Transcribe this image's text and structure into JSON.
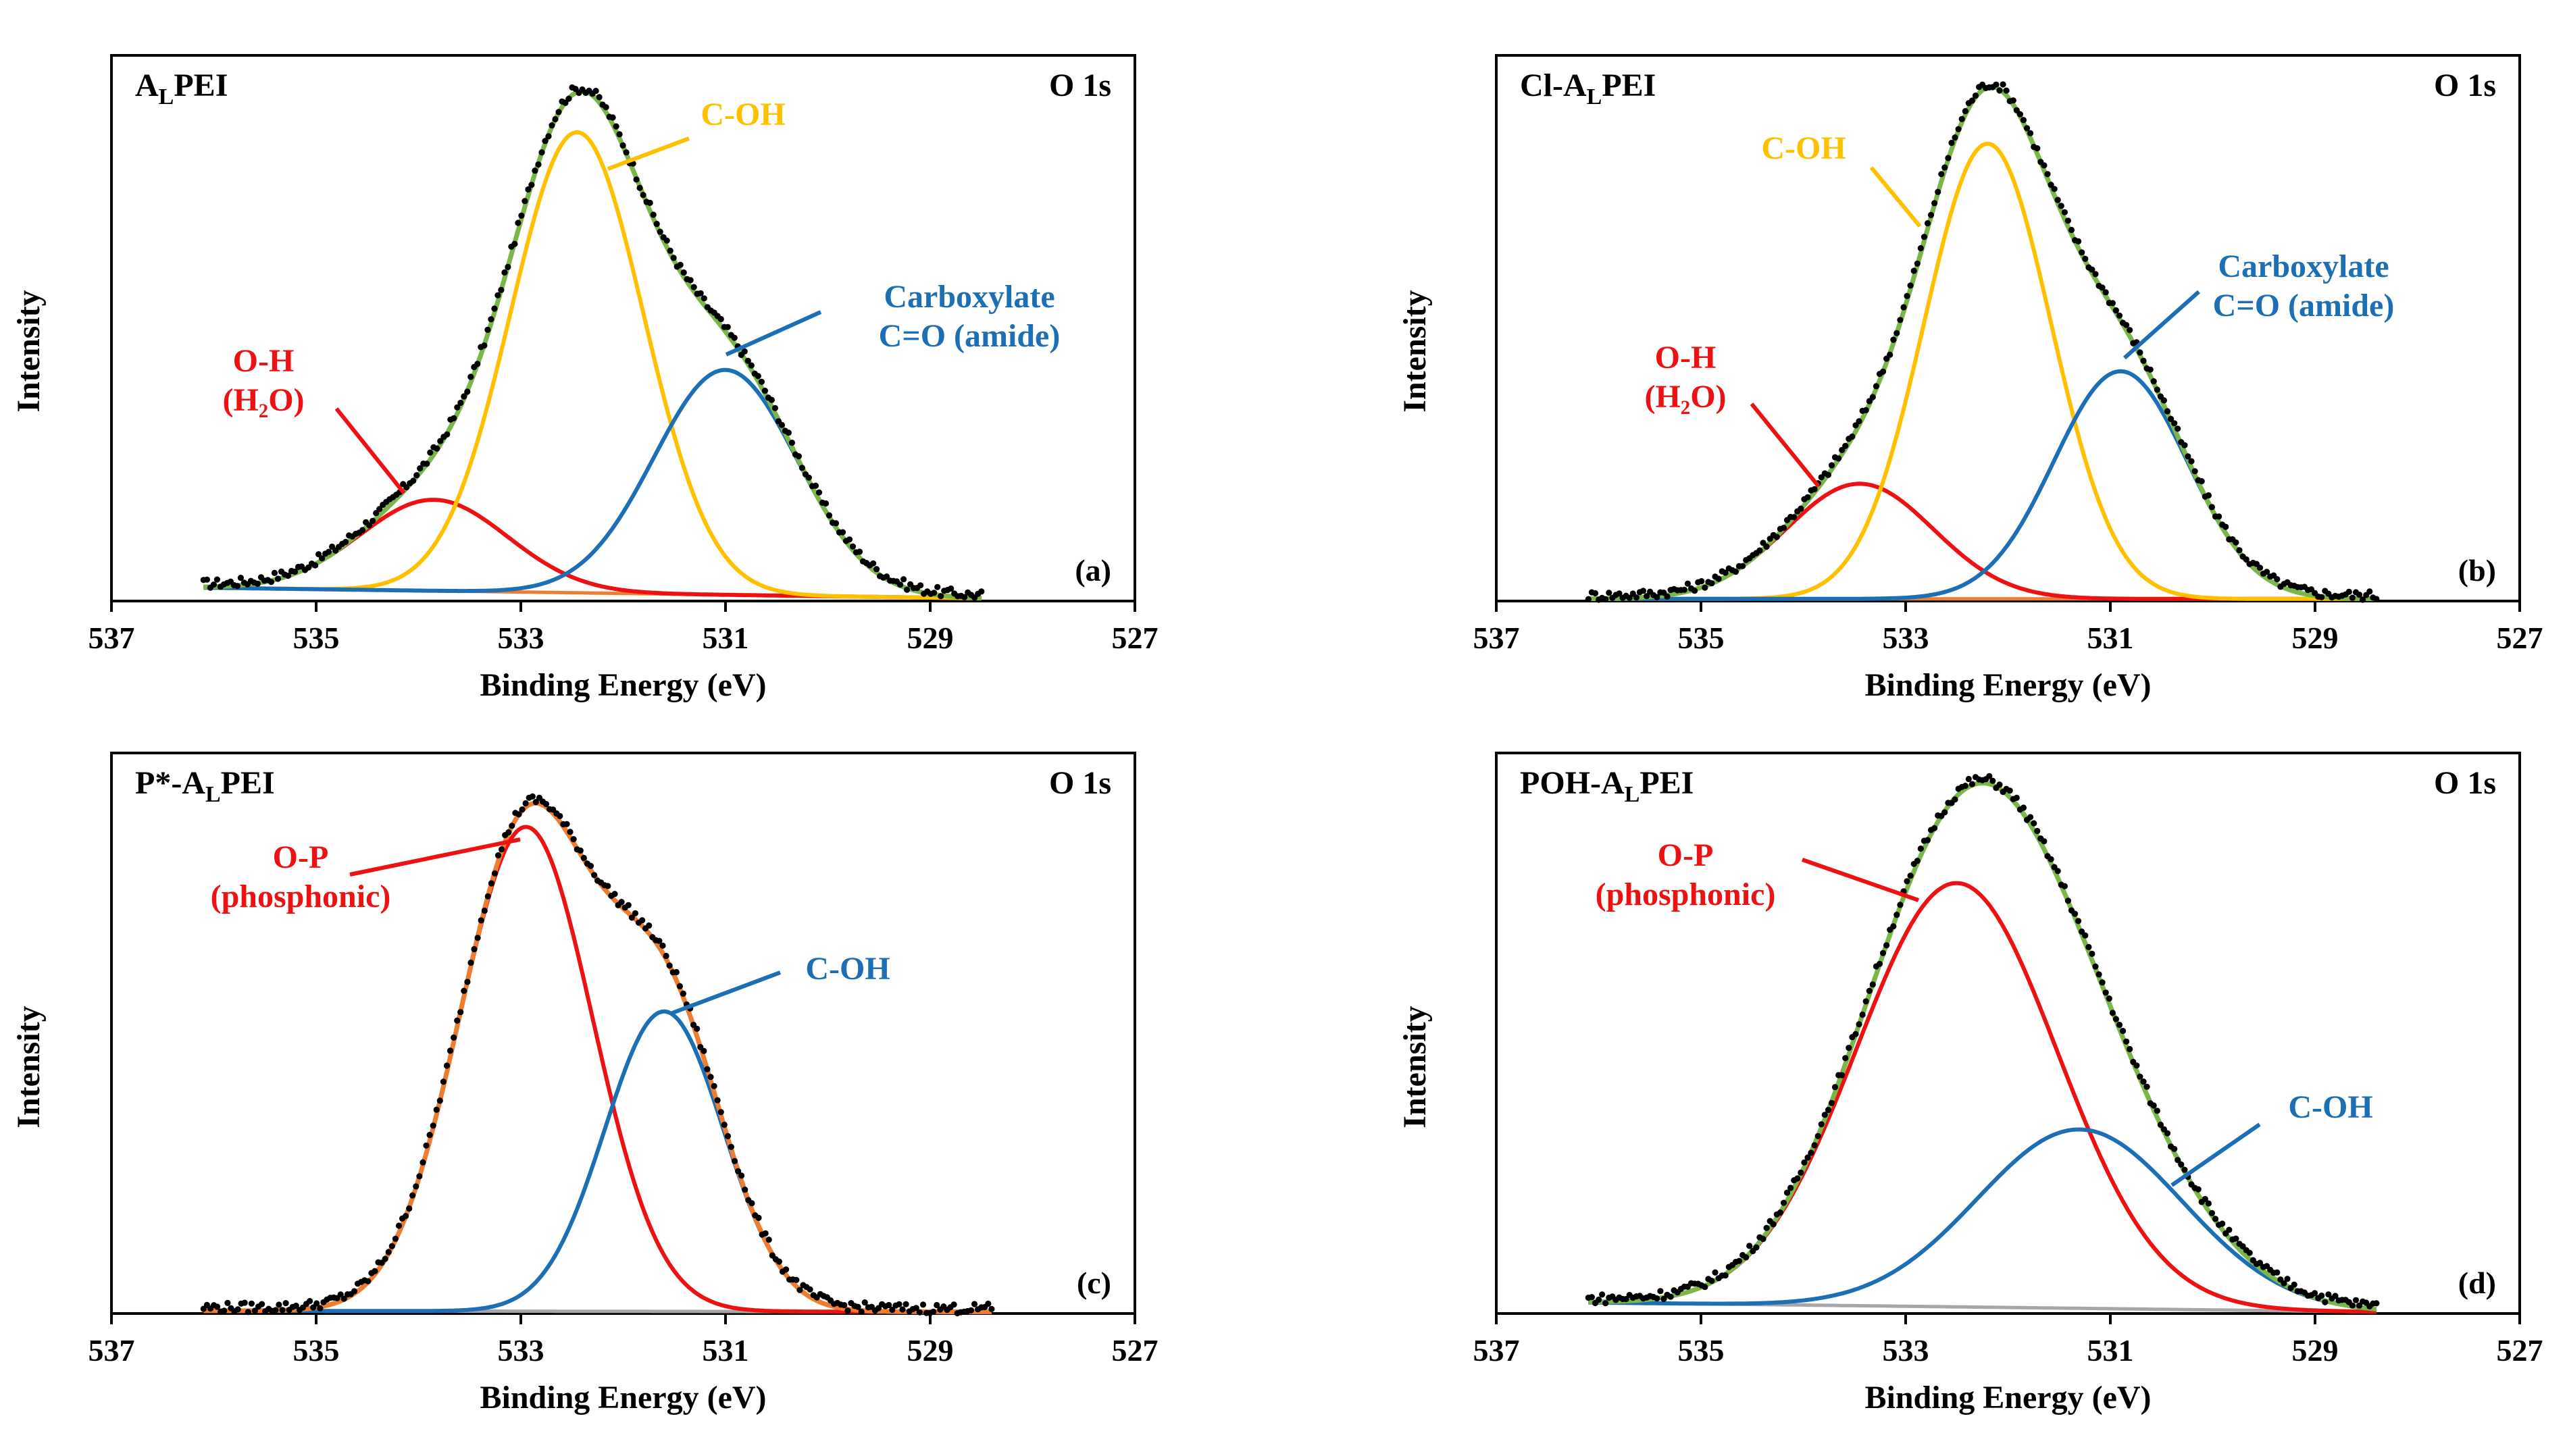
{
  "figure": {
    "description_label": "XPS O 1s spectra of modified PEI samples"
  },
  "colors": {
    "data": "#000000",
    "envelope_green": "#7ab648",
    "envelope_orange": "#ed7d31",
    "yellow": "#ffc000",
    "blue": "#1c6fb5",
    "red": "#ee1111",
    "gray": "#a6a6a6"
  },
  "chart_data": [
    {
      "type": "line",
      "id": "a",
      "title": "A",
      "title_sub": "L",
      "title_rest": "PEI",
      "core_level": "O 1s",
      "panel_label": "(a)",
      "xlabel": "Binding Energy (eV)",
      "ylabel": "Intensity",
      "xlim": [
        537,
        527
      ],
      "ylim": [
        0,
        1.0
      ],
      "xticks": [
        "537",
        "535",
        "533",
        "531",
        "529",
        "527"
      ],
      "envelope_color": "green",
      "baseline": {
        "color": "orange",
        "start": 0.025,
        "end": 0.005
      },
      "peaks": [
        {
          "name": "O-H (H2O)",
          "center": 533.85,
          "height": 0.17,
          "sigma": 0.72,
          "color": "red"
        },
        {
          "name": "C-OH",
          "center": 532.45,
          "height": 0.86,
          "sigma": 0.65,
          "color": "yellow"
        },
        {
          "name": "Carboxylate C=O (amide)",
          "center": 531.0,
          "height": 0.42,
          "sigma": 0.7,
          "color": "blue"
        }
      ],
      "data_range": [
        536.1,
        528.5
      ],
      "annotations": [
        {
          "lines": [
            "C-OH"
          ],
          "color": "yellow"
        },
        {
          "lines": [
            "Carboxylate",
            "C=O (amide)"
          ],
          "color": "blue"
        },
        {
          "lines": [
            "O-H",
            "(H₂O)"
          ],
          "color": "red"
        }
      ]
    },
    {
      "type": "line",
      "id": "b",
      "title": "Cl-A",
      "title_sub": "L",
      "title_rest": "PEI",
      "core_level": "O 1s",
      "panel_label": "(b)",
      "xlabel": "Binding Energy (eV)",
      "ylabel": "Intensity",
      "xlim": [
        537,
        527
      ],
      "ylim": [
        0,
        1.0
      ],
      "xticks": [
        "537",
        "535",
        "533",
        "531",
        "529",
        "527"
      ],
      "envelope_color": "green",
      "baseline": {
        "color": "orange",
        "start": 0.004,
        "end": 0.004
      },
      "peaks": [
        {
          "name": "O-H (H2O)",
          "center": 533.45,
          "height": 0.215,
          "sigma": 0.72,
          "color": "red"
        },
        {
          "name": "C-OH",
          "center": 532.2,
          "height": 0.85,
          "sigma": 0.62,
          "color": "yellow"
        },
        {
          "name": "Carboxylate C=O (amide)",
          "center": 530.9,
          "height": 0.425,
          "sigma": 0.65,
          "color": "blue"
        }
      ],
      "data_range": [
        536.1,
        528.4
      ],
      "annotations": [
        {
          "lines": [
            "C-OH"
          ],
          "color": "yellow"
        },
        {
          "lines": [
            "Carboxylate",
            "C=O (amide)"
          ],
          "color": "blue"
        },
        {
          "lines": [
            "O-H",
            "(H₂O)"
          ],
          "color": "red"
        }
      ]
    },
    {
      "type": "line",
      "id": "c",
      "title": "P*-A",
      "title_sub": "L",
      "title_rest": "PEI",
      "core_level": "O 1s",
      "panel_label": "(c)",
      "xlabel": "Binding Energy (eV)",
      "ylabel": "Intensity",
      "xlim": [
        537,
        527
      ],
      "ylim": [
        0,
        1.0
      ],
      "xticks": [
        "537",
        "535",
        "533",
        "531",
        "529",
        "527"
      ],
      "envelope_color": "orange",
      "baseline": {
        "color": "gray",
        "start": 0.005,
        "end": 0.003
      },
      "peaks": [
        {
          "name": "O-P (phosphonic)",
          "center": 532.95,
          "height": 0.88,
          "sigma": 0.65,
          "color": "red"
        },
        {
          "name": "C-OH",
          "center": 531.6,
          "height": 0.545,
          "sigma": 0.58,
          "color": "blue"
        }
      ],
      "data_range": [
        536.1,
        528.4
      ],
      "annotations": [
        {
          "lines": [
            "O-P",
            "(phosphonic)"
          ],
          "color": "red"
        },
        {
          "lines": [
            "C-OH"
          ],
          "color": "blue"
        }
      ]
    },
    {
      "type": "line",
      "id": "d",
      "title": "POH-A",
      "title_sub": "L",
      "title_rest": "PEI",
      "core_level": "O 1s",
      "panel_label": "(d)",
      "xlabel": "Binding Energy (eV)",
      "ylabel": "Intensity",
      "xlim": [
        537,
        527
      ],
      "ylim": [
        0,
        1.0
      ],
      "xticks": [
        "537",
        "535",
        "533",
        "531",
        "529",
        "527"
      ],
      "envelope_color": "green",
      "baseline": {
        "color": "gray",
        "start": 0.02,
        "end": 0.003
      },
      "peaks": [
        {
          "name": "O-P (phosphonic)",
          "center": 532.5,
          "height": 0.77,
          "sigma": 0.98,
          "color": "red"
        },
        {
          "name": "C-OH",
          "center": 531.3,
          "height": 0.325,
          "sigma": 1.0,
          "color": "blue"
        }
      ],
      "data_range": [
        536.1,
        528.4
      ],
      "annotations": [
        {
          "lines": [
            "O-P",
            "(phosphonic)"
          ],
          "color": "red"
        },
        {
          "lines": [
            "C-OH"
          ],
          "color": "blue"
        }
      ]
    }
  ]
}
